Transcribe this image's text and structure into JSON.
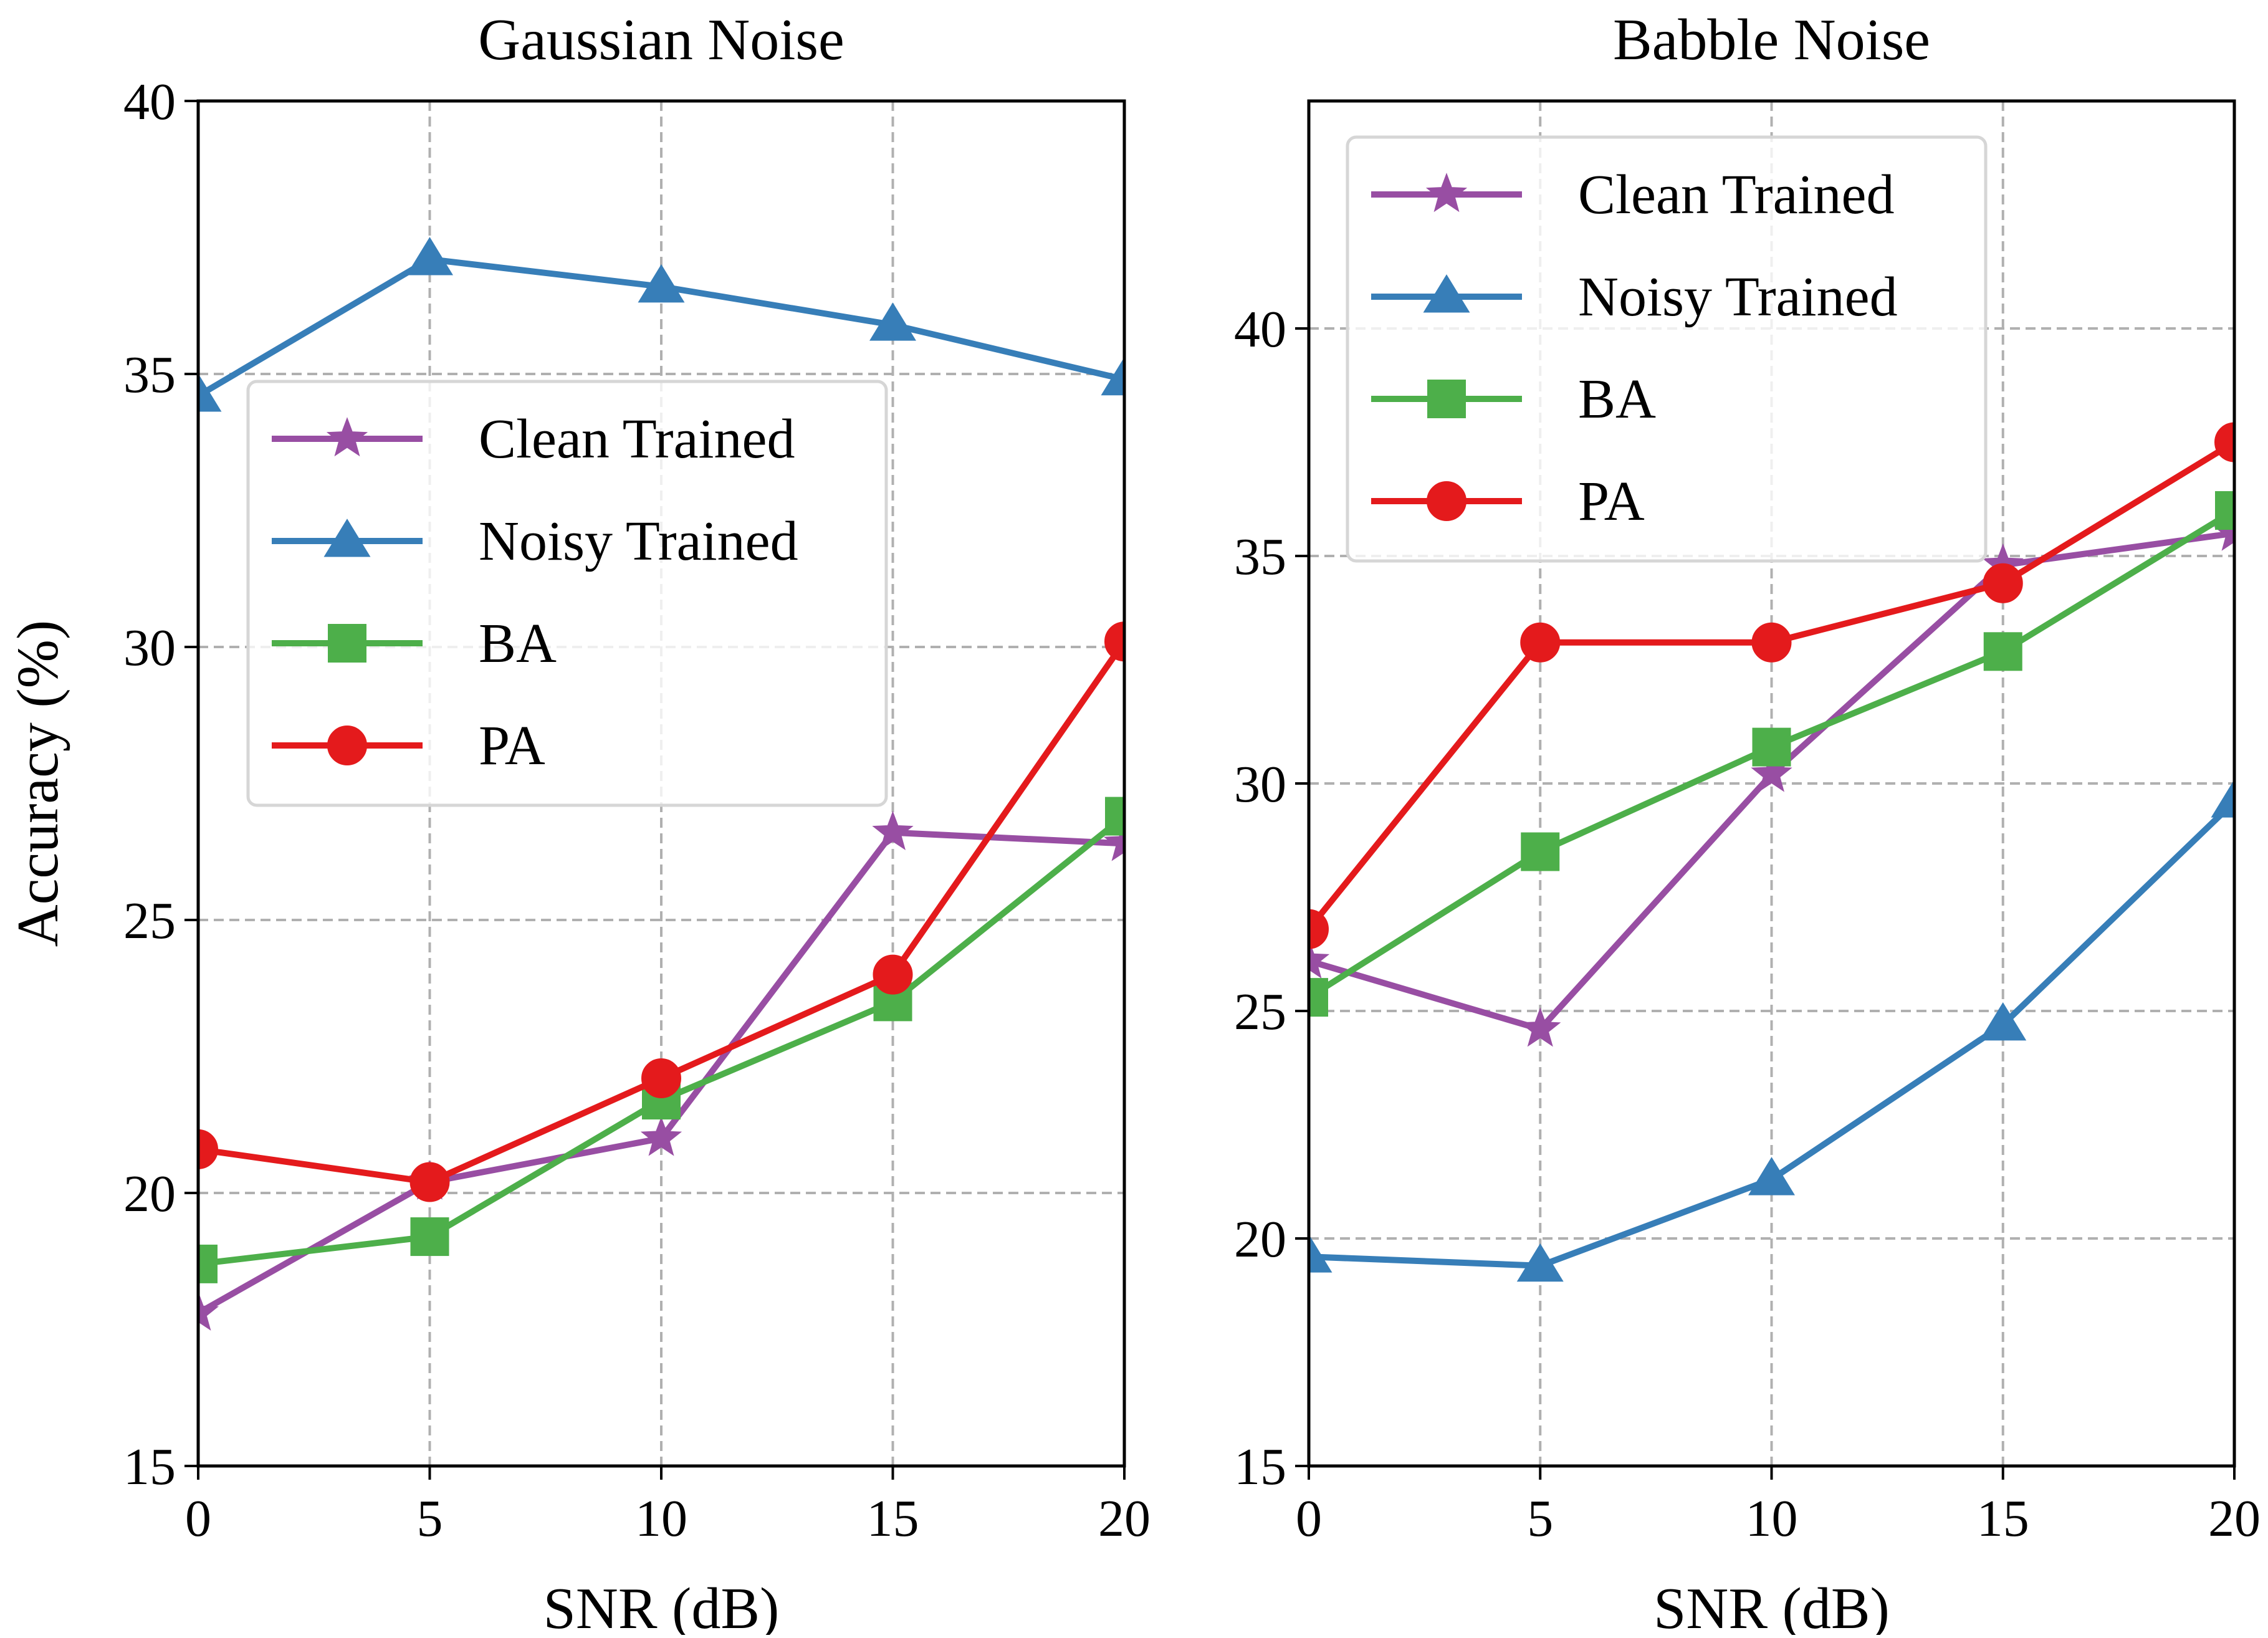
{
  "chart_data": [
    {
      "type": "line",
      "title": "Gaussian Noise",
      "xlabel": "SNR (dB)",
      "ylabel": "Accuracy (%)",
      "x": [
        0,
        5,
        10,
        15,
        20
      ],
      "xlim": [
        0,
        20
      ],
      "ylim": [
        15,
        40
      ],
      "xticks": [
        "0",
        "5",
        "10",
        "15",
        "20"
      ],
      "yticks": [
        "15",
        "20",
        "25",
        "30",
        "35",
        "40"
      ],
      "grid": true,
      "legend_position": "center-left",
      "series": [
        {
          "name": "Clean Trained",
          "marker": "star",
          "color": "#984ea3",
          "values": [
            17.8,
            20.2,
            21.0,
            26.6,
            26.4
          ]
        },
        {
          "name": "Noisy Trained",
          "marker": "triangle",
          "color": "#377eb8",
          "values": [
            34.6,
            37.1,
            36.6,
            35.9,
            34.9
          ]
        },
        {
          "name": "BA",
          "marker": "square",
          "color": "#4daf4a",
          "values": [
            18.7,
            19.2,
            21.7,
            23.5,
            26.9
          ]
        },
        {
          "name": "PA",
          "marker": "circle",
          "color": "#e41a1c",
          "values": [
            20.8,
            20.2,
            22.1,
            24.0,
            30.1
          ]
        }
      ]
    },
    {
      "type": "line",
      "title": "Babble Noise",
      "xlabel": "SNR (dB)",
      "ylabel": "",
      "x": [
        0,
        5,
        10,
        15,
        20
      ],
      "xlim": [
        0,
        20
      ],
      "ylim": [
        15,
        45
      ],
      "xticks": [
        "0",
        "5",
        "10",
        "15",
        "20"
      ],
      "yticks": [
        "15",
        "20",
        "25",
        "30",
        "35",
        "40"
      ],
      "grid": true,
      "legend_position": "upper-left",
      "series": [
        {
          "name": "Clean Trained",
          "marker": "star",
          "color": "#984ea3",
          "values": [
            26.1,
            24.6,
            30.2,
            34.8,
            35.5
          ]
        },
        {
          "name": "Noisy Trained",
          "marker": "triangle",
          "color": "#377eb8",
          "values": [
            19.6,
            19.4,
            21.3,
            24.7,
            29.6
          ]
        },
        {
          "name": "BA",
          "marker": "square",
          "color": "#4daf4a",
          "values": [
            25.3,
            28.5,
            30.8,
            32.9,
            36.0
          ]
        },
        {
          "name": "PA",
          "marker": "circle",
          "color": "#e41a1c",
          "values": [
            26.8,
            33.1,
            33.1,
            34.4,
            37.5
          ]
        }
      ]
    }
  ]
}
